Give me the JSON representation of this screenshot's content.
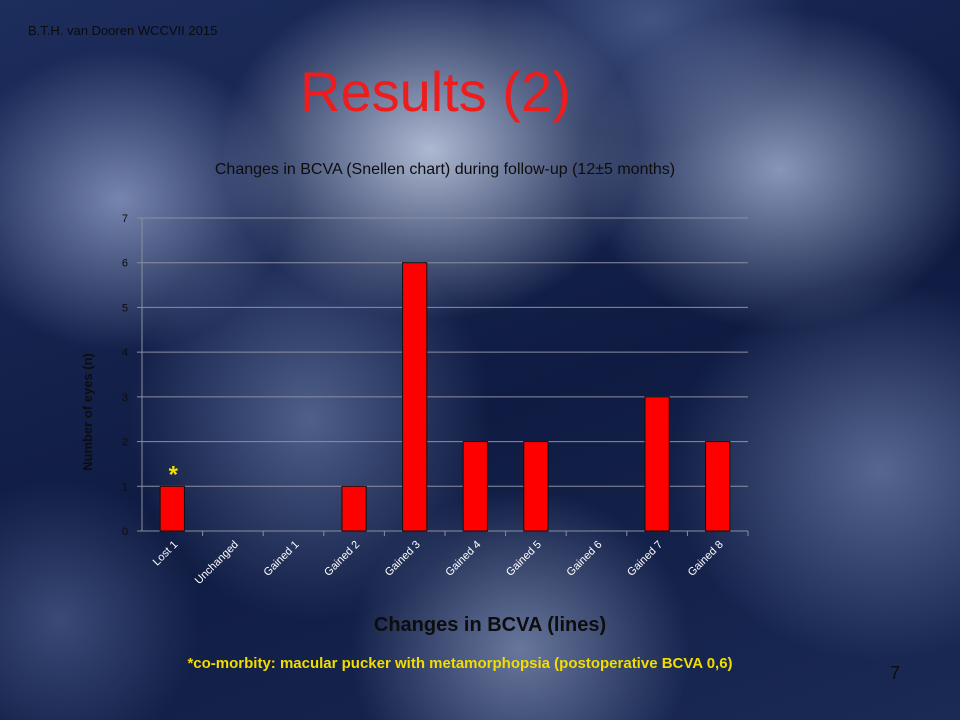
{
  "header": {
    "author": "B.T.H. van Dooren WCCVII 2015",
    "title": "Results (2)"
  },
  "chart_data": {
    "type": "bar",
    "title": "Changes in BCVA (Snellen chart)  during follow-up (12±5 months)",
    "xlabel": "Changes in BCVA (lines)",
    "ylabel": "Number of eyes (n)",
    "categories": [
      "Lost 1",
      "Unchanged",
      "Gained 1",
      "Gained 2",
      "Gained 3",
      "Gained 4",
      "Gained 5",
      "Gained 6",
      "Gained 7",
      "Gained 8"
    ],
    "values": [
      1,
      0,
      0,
      1,
      6,
      2,
      2,
      0,
      3,
      2
    ],
    "ylim": [
      0,
      7
    ],
    "yticks": [
      0,
      1,
      2,
      3,
      4,
      5,
      6,
      7
    ],
    "grid": true,
    "bar_color": "#ff0000",
    "annotation": {
      "text": "*",
      "category": "Lost 1"
    }
  },
  "footnote": "*co-morbity: macular pucker with metamorphopsia (postoperative BCVA 0,6)",
  "page_number": "7"
}
